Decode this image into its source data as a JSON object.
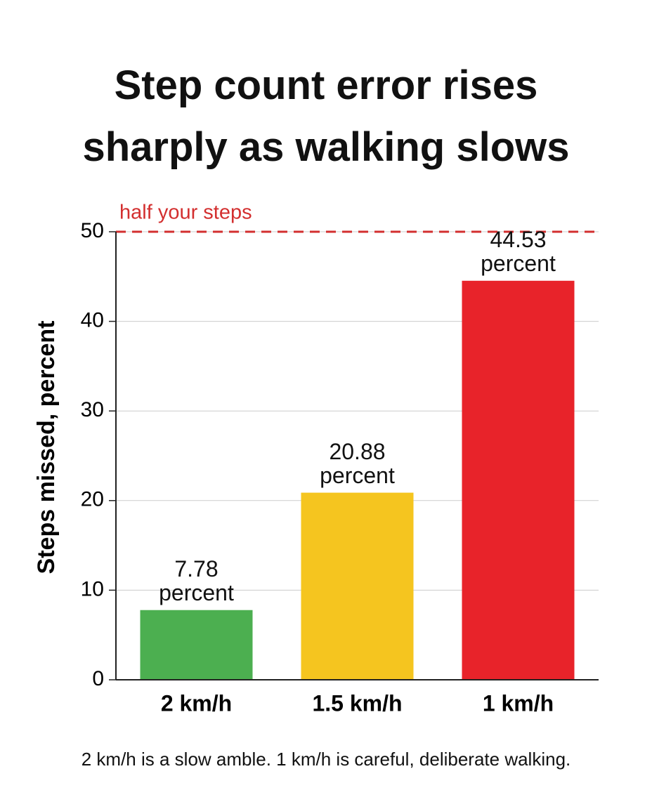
{
  "chart_data": {
    "type": "bar",
    "title": "Step count error rises sharply as walking slows",
    "y_label": "Steps missed, percent",
    "categories": [
      "2 km/h",
      "1.5 km/h",
      "1 km/h"
    ],
    "values": [
      7.78,
      20.88,
      44.53
    ],
    "value_labels": [
      "7.78 percent",
      "20.88 percent",
      "44.53 percent"
    ],
    "colors": [
      "#4caf50",
      "#f5c51f",
      "#e8232a"
    ],
    "ylim": [
      0,
      50
    ],
    "yticks": [
      0,
      10,
      20,
      30,
      40,
      50
    ],
    "grid": true,
    "reference_line": {
      "value": 50,
      "label": "half your steps",
      "color": "#d32f2f"
    },
    "note": "2 km/h is a slow amble. 1 km/h is careful, deliberate walking."
  }
}
